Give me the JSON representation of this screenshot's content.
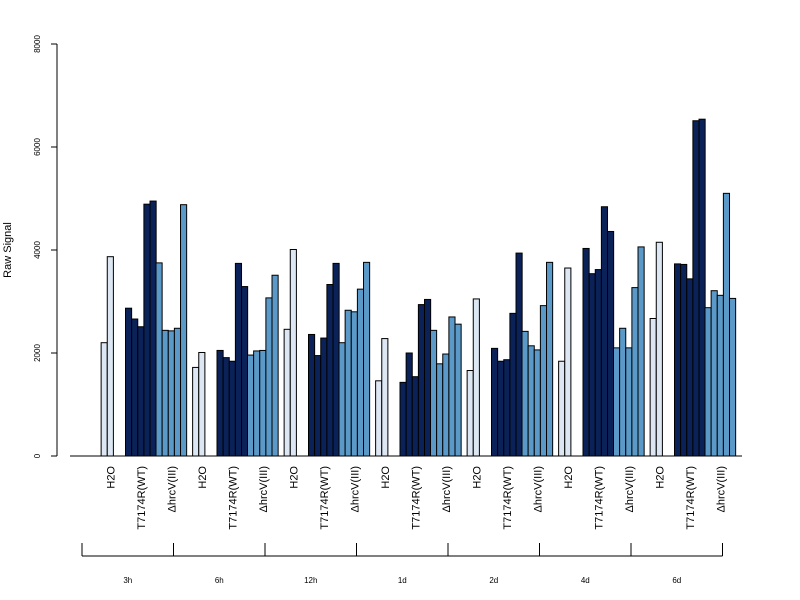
{
  "chart_data": {
    "type": "bar",
    "title": "",
    "xlabel": "",
    "ylabel": "Raw Signal",
    "ylim": [
      0,
      8000
    ],
    "yticks": [
      "0",
      "2000",
      "4000",
      "6000",
      "8000"
    ],
    "grid": false,
    "legend": "none",
    "groups": [
      {
        "label": "3h",
        "conditions": [
          {
            "label": "H2O",
            "color": "#dce7f3",
            "values": [
              0,
              2200,
              3870
            ]
          },
          {
            "label": "T7174R(WT)",
            "color": "#0b2258",
            "values": [
              2870,
              2660,
              2510,
              4890,
              4950
            ]
          },
          {
            "label": "ΔhrcV(III)",
            "color": "#5b9ac8",
            "values": [
              3750,
              2440,
              2430,
              2480,
              4880
            ]
          }
        ]
      },
      {
        "label": "6h",
        "conditions": [
          {
            "label": "H2O",
            "color": "#dce7f3",
            "values": [
              0,
              1720,
              2010
            ]
          },
          {
            "label": "T7174R(WT)",
            "color": "#0b2258",
            "values": [
              2050,
              1910,
              1840,
              3740,
              3290
            ]
          },
          {
            "label": "ΔhrcV(III)",
            "color": "#5b9ac8",
            "values": [
              1960,
              2040,
              2050,
              3070,
              3510
            ]
          }
        ]
      },
      {
        "label": "12h",
        "conditions": [
          {
            "label": "H2O",
            "color": "#dce7f3",
            "values": [
              0,
              2460,
              4010
            ]
          },
          {
            "label": "T7174R(WT)",
            "color": "#0b2258",
            "values": [
              2360,
              1950,
              2290,
              3330,
              3740
            ]
          },
          {
            "label": "ΔhrcV(III)",
            "color": "#5b9ac8",
            "values": [
              2200,
              2830,
              2800,
              3240,
              3760
            ]
          }
        ]
      },
      {
        "label": "1d",
        "conditions": [
          {
            "label": "H2O",
            "color": "#dce7f3",
            "values": [
              0,
              1460,
              2280
            ]
          },
          {
            "label": "T7174R(WT)",
            "color": "#0b2258",
            "values": [
              1430,
              2000,
              1540,
              2940,
              3040
            ]
          },
          {
            "label": "ΔhrcV(III)",
            "color": "#5b9ac8",
            "values": [
              2440,
              1790,
              1980,
              2700,
              2560
            ]
          }
        ]
      },
      {
        "label": "2d",
        "conditions": [
          {
            "label": "H2O",
            "color": "#dce7f3",
            "values": [
              0,
              1660,
              3050
            ]
          },
          {
            "label": "T7174R(WT)",
            "color": "#0b2258",
            "values": [
              2090,
              1840,
              1870,
              2770,
              3940
            ]
          },
          {
            "label": "ΔhrcV(III)",
            "color": "#5b9ac8",
            "values": [
              2420,
              2140,
              2060,
              2920,
              3760
            ]
          }
        ]
      },
      {
        "label": "4d",
        "conditions": [
          {
            "label": "H2O",
            "color": "#dce7f3",
            "values": [
              0,
              1840,
              3650
            ]
          },
          {
            "label": "T7174R(WT)",
            "color": "#0b2258",
            "values": [
              4030,
              3540,
              3620,
              4840,
              4360
            ]
          },
          {
            "label": "ΔhrcV(III)",
            "color": "#5b9ac8",
            "values": [
              2100,
              2480,
              2100,
              3270,
              4060
            ]
          }
        ]
      },
      {
        "label": "6d",
        "conditions": [
          {
            "label": "H2O",
            "color": "#dce7f3",
            "values": [
              0,
              2670,
              4150
            ]
          },
          {
            "label": "T7174R(WT)",
            "color": "#0b2258",
            "values": [
              3730,
              3720,
              3440,
              6510,
              6540
            ]
          },
          {
            "label": "ΔhrcV(III)",
            "color": "#5b9ac8",
            "values": [
              2880,
              3210,
              3120,
              5100,
              3060
            ]
          }
        ]
      }
    ]
  }
}
